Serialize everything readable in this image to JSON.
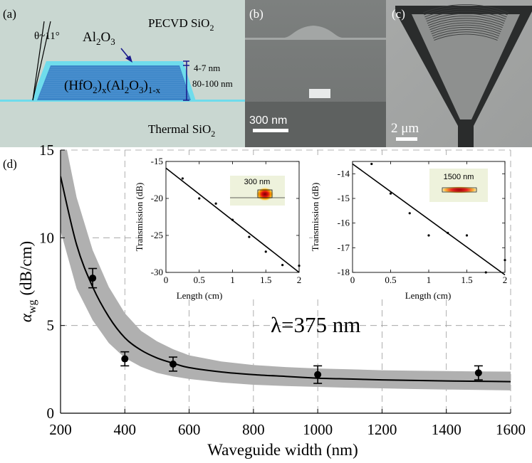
{
  "panel_a": {
    "letter": "(a)",
    "top_material": "PECVD SiO",
    "top_material_sub": "2",
    "angle_label": "θ~11°",
    "cladding_label": "Al",
    "cladding_sub1": "2",
    "cladding_mid": "O",
    "cladding_sub2": "3",
    "core_label_p1": "(HfO",
    "core_label_s1": "2",
    "core_label_p2": ")",
    "core_label_s2": "x",
    "core_label_p3": "(Al",
    "core_label_s3": "2",
    "core_label_p4": "O",
    "core_label_s4": "3",
    "core_label_p5": ")",
    "core_label_s5": "1-x",
    "thin_dim": "4-7 nm",
    "thick_dim": "80-100 nm",
    "bottom_material": "Thermal SiO",
    "bottom_material_sub": "2",
    "colors": {
      "background": "#c9d7d1",
      "cladding": "#6fdcec",
      "core": "#3c86c8",
      "dimension": "#1a1a8c"
    }
  },
  "panel_b": {
    "letter": "(b)",
    "scale_bar": "300 nm"
  },
  "panel_c": {
    "letter": "(c)",
    "scale_bar": "2 μm"
  },
  "panel_d": {
    "letter": "(d)",
    "annotation": "λ=375 nm"
  },
  "chart_data": [
    {
      "id": "main",
      "type": "scatter",
      "xlabel": "Waveguide width (nm)",
      "ylabel": "α",
      "ylabel_sub": "wg",
      "ylabel_unit": "(dB/cm)",
      "xlim": [
        200,
        1600
      ],
      "ylim": [
        0,
        15
      ],
      "xticks": [
        200,
        400,
        600,
        800,
        1000,
        1200,
        1400,
        1600
      ],
      "yticks": [
        0,
        5,
        10,
        15
      ],
      "grid": true,
      "points": [
        {
          "x": 300,
          "y": 7.7,
          "err": 0.55
        },
        {
          "x": 400,
          "y": 3.1,
          "err": 0.4
        },
        {
          "x": 550,
          "y": 2.8,
          "err": 0.4
        },
        {
          "x": 1000,
          "y": 2.2,
          "err": 0.5
        },
        {
          "x": 1500,
          "y": 2.3,
          "err": 0.4
        }
      ],
      "fit": {
        "x": [
          200,
          250,
          300,
          350,
          400,
          450,
          500,
          550,
          600,
          700,
          800,
          900,
          1000,
          1100,
          1200,
          1300,
          1400,
          1500,
          1600
        ],
        "y": [
          13.5,
          9.6,
          7.2,
          5.5,
          4.3,
          3.6,
          3.15,
          2.85,
          2.6,
          2.35,
          2.2,
          2.1,
          2.0,
          1.95,
          1.9,
          1.87,
          1.84,
          1.82,
          1.8
        ]
      },
      "band": {
        "x": [
          200,
          250,
          300,
          350,
          400,
          450,
          500,
          550,
          600,
          700,
          800,
          900,
          1000,
          1100,
          1200,
          1300,
          1400,
          1500,
          1600
        ],
        "upper": [
          16.8,
          12.3,
          9.3,
          7.2,
          5.7,
          4.7,
          4.1,
          3.65,
          3.3,
          2.95,
          2.75,
          2.63,
          2.55,
          2.5,
          2.45,
          2.42,
          2.4,
          2.38,
          2.37
        ],
        "lower": [
          10.4,
          7.1,
          5.3,
          4.0,
          3.15,
          2.65,
          2.3,
          2.1,
          1.95,
          1.75,
          1.62,
          1.55,
          1.5,
          1.45,
          1.42,
          1.38,
          1.35,
          1.33,
          1.3
        ]
      },
      "colors": {
        "band": "#b0b0b0",
        "line": "#000000",
        "points": "#000000",
        "grid": "#9a9a9a"
      }
    },
    {
      "id": "inset_300",
      "type": "scatter",
      "xlabel": "Length (cm)",
      "ylabel": "Transmission (dB)",
      "xlim": [
        0,
        2
      ],
      "ylim": [
        -30,
        -15
      ],
      "xticks": [
        0,
        0.5,
        1,
        1.5,
        2
      ],
      "xtick_labels": [
        "0",
        "0.5",
        "1",
        "1.5",
        "2"
      ],
      "yticks": [
        -30,
        -25,
        -20,
        -15
      ],
      "grid": false,
      "mode_label": "300 nm",
      "points": [
        {
          "x": 0.25,
          "y": -17.3
        },
        {
          "x": 0.5,
          "y": -20.0
        },
        {
          "x": 0.75,
          "y": -20.7
        },
        {
          "x": 1.0,
          "y": -22.9
        },
        {
          "x": 1.25,
          "y": -25.2
        },
        {
          "x": 1.5,
          "y": -27.2
        },
        {
          "x": 1.75,
          "y": -29.0
        },
        {
          "x": 2.0,
          "y": -29.1
        }
      ],
      "fit_line": {
        "x": [
          0,
          2
        ],
        "y": [
          -15.9,
          -30.0
        ]
      }
    },
    {
      "id": "inset_1500",
      "type": "scatter",
      "xlabel": "Length (cm)",
      "ylabel": "Transmission (dB)",
      "xlim": [
        0,
        2
      ],
      "ylim": [
        -18,
        -13.5
      ],
      "xticks": [
        0,
        0.5,
        1,
        1.5,
        2
      ],
      "xtick_labels": [
        "0",
        "0.5",
        "1",
        "1.5",
        "2"
      ],
      "yticks": [
        -18,
        -17,
        -16,
        -15,
        -14
      ],
      "grid": false,
      "mode_label": "1500 nm",
      "points": [
        {
          "x": 0.25,
          "y": -13.6
        },
        {
          "x": 0.5,
          "y": -14.8
        },
        {
          "x": 0.75,
          "y": -15.6
        },
        {
          "x": 1.0,
          "y": -16.5
        },
        {
          "x": 1.25,
          "y": -16.4
        },
        {
          "x": 1.5,
          "y": -16.5
        },
        {
          "x": 1.75,
          "y": -18.0
        },
        {
          "x": 2.0,
          "y": -17.5
        }
      ],
      "fit_line": {
        "x": [
          0,
          2
        ],
        "y": [
          -13.6,
          -18.1
        ]
      }
    }
  ]
}
